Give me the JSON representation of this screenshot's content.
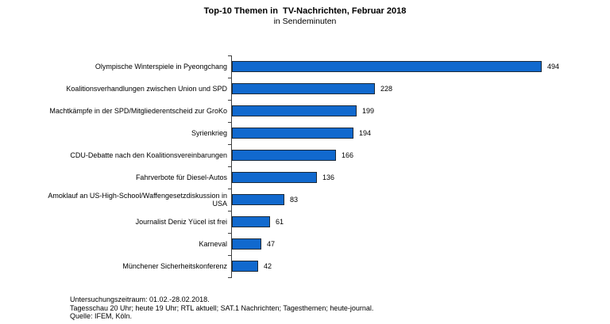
{
  "title": "Top-10 Themen in  TV-Nachrichten, Februar 2018",
  "subtitle": "in Sendeminuten",
  "chart_data": {
    "type": "bar",
    "orientation": "horizontal",
    "title": "Top-10 Themen in TV-Nachrichten, Februar 2018",
    "subtitle": "in Sendeminuten",
    "xlabel": "",
    "ylabel": "",
    "xlim": [
      0,
      500
    ],
    "grid": false,
    "legend": "none",
    "bar_color": "#1169ce",
    "bar_border_color": "#1c2a38",
    "categories": [
      "Olympische Winterspiele in Pyeongchang",
      "Koalitionsverhandlungen zwischen Union und SPD",
      "Machtkämpfe in der SPD/Mitgliederentscheid zur GroKo",
      "Syrienkrieg",
      "CDU-Debatte nach den Koalitionsvereinbarungen",
      "Fahrverbote für Diesel-Autos",
      "Amoklauf an US-High-School/Waffengesetzdiskussion in USA",
      "Journalist Deniz Yücel ist frei",
      "Karneval",
      "Münchener Sicherheitskonferenz"
    ],
    "values": [
      494,
      228,
      199,
      194,
      166,
      136,
      83,
      61,
      47,
      42
    ]
  },
  "footer": {
    "lines": [
      "Untersuchungszeitraum: 01.02.-28.02.2018.",
      "Tagesschau 20 Uhr; heute 19 Uhr; RTL aktuell; SAT.1 Nachrichten; Tagesthemen; heute-journal.",
      "Quelle: IFEM, Köln."
    ]
  }
}
